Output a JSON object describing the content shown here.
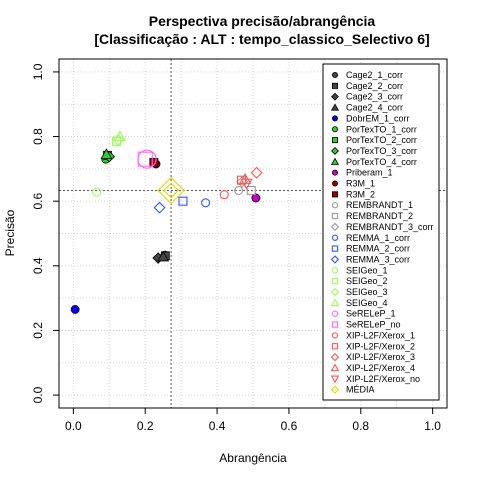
{
  "chart_data": {
    "type": "scatter",
    "title_line1": "Perspectiva precisão/abrangência",
    "title_line2": "[Classificação : ALT : tempo_classico_Selectivo 6]",
    "xlabel": "Abrangência",
    "ylabel": "Precisão",
    "xlim": [
      -0.04,
      1.04
    ],
    "ylim": [
      -0.04,
      1.04
    ],
    "x_ticks": [
      "0.0",
      "0.2",
      "0.4",
      "0.6",
      "0.8",
      "1.0"
    ],
    "y_ticks": [
      "0.0",
      "0.2",
      "0.4",
      "0.6",
      "0.8",
      "1.0"
    ],
    "grid": true,
    "legend_position": "right",
    "reference_lines": {
      "x": 0.272,
      "y": 0.633
    },
    "series": [
      {
        "name": "Cage2_1_corr",
        "color": "#444444",
        "shape": "circle",
        "fill": true,
        "x": 0.255,
        "y": 0.433,
        "size": 4
      },
      {
        "name": "Cage2_2_corr",
        "color": "#444444",
        "shape": "square",
        "fill": true,
        "x": 0.256,
        "y": 0.431,
        "size": 4
      },
      {
        "name": "Cage2_3_corr",
        "color": "#444444",
        "shape": "diamond",
        "fill": true,
        "x": 0.236,
        "y": 0.424,
        "size": 4
      },
      {
        "name": "Cage2_4_corr",
        "color": "#444444",
        "shape": "triangle",
        "fill": true,
        "x": 0.25,
        "y": 0.428,
        "size": 4
      },
      {
        "name": "DobrEM_1_corr",
        "color": "#0000ff",
        "shape": "circle",
        "fill": true,
        "x": 0.005,
        "y": 0.265,
        "size": 4
      },
      {
        "name": "PorTexTO_1_corr",
        "color": "#32cd32",
        "shape": "circle",
        "fill": true,
        "x": 0.09,
        "y": 0.73,
        "size": 4
      },
      {
        "name": "PorTexTO_2_corr",
        "color": "#32cd32",
        "shape": "square",
        "fill": true,
        "x": 0.095,
        "y": 0.742,
        "size": 4
      },
      {
        "name": "PorTexTO_3_corr",
        "color": "#32cd32",
        "shape": "diamond",
        "fill": true,
        "x": 0.1,
        "y": 0.738,
        "size": 4
      },
      {
        "name": "PorTexTO_4_corr",
        "color": "#32cd32",
        "shape": "triangle",
        "fill": true,
        "x": 0.092,
        "y": 0.745,
        "size": 4
      },
      {
        "name": "Priberam_1",
        "color": "#cc00cc",
        "shape": "circle",
        "fill": true,
        "x": 0.508,
        "y": 0.61,
        "size": 4
      },
      {
        "name": "R3M_1",
        "color": "#a00000",
        "shape": "circle",
        "fill": true,
        "x": 0.23,
        "y": 0.715,
        "size": 4
      },
      {
        "name": "R3M_2",
        "color": "#a00000",
        "shape": "square",
        "fill": true,
        "x": 0.224,
        "y": 0.72,
        "size": 4
      },
      {
        "name": "REMBRANDT_1",
        "color": "#999999",
        "shape": "circle",
        "fill": false,
        "x": 0.46,
        "y": 0.633,
        "size": 4
      },
      {
        "name": "REMBRANDT_2",
        "color": "#999999",
        "shape": "square",
        "fill": false,
        "x": 0.495,
        "y": 0.633,
        "size": 4
      },
      {
        "name": "REMBRANDT_3_corr",
        "color": "#999999",
        "shape": "diamond",
        "fill": false,
        "x": 0.47,
        "y": 0.66,
        "size": 4
      },
      {
        "name": "REMMA_1_corr",
        "color": "#3355ff",
        "shape": "circle",
        "fill": false,
        "x": 0.368,
        "y": 0.595,
        "size": 4
      },
      {
        "name": "REMMA_2_corr",
        "color": "#3355ff",
        "shape": "square",
        "fill": false,
        "x": 0.305,
        "y": 0.6,
        "size": 4
      },
      {
        "name": "REMMA_3_corr",
        "color": "#3355ff",
        "shape": "diamond",
        "fill": false,
        "x": 0.24,
        "y": 0.58,
        "size": 4
      },
      {
        "name": "SEIGeo_1",
        "color": "#99ff55",
        "shape": "circle",
        "fill": false,
        "x": 0.065,
        "y": 0.628,
        "size": 4
      },
      {
        "name": "SEIGeo_2",
        "color": "#99ff55",
        "shape": "square",
        "fill": false,
        "x": 0.12,
        "y": 0.785,
        "size": 4
      },
      {
        "name": "SEIGeo_3",
        "color": "#99ff55",
        "shape": "diamond",
        "fill": false,
        "x": 0.125,
        "y": 0.79,
        "size": 4
      },
      {
        "name": "SEIGeo_4",
        "color": "#99ff55",
        "shape": "triangle",
        "fill": false,
        "x": 0.13,
        "y": 0.8,
        "size": 4
      },
      {
        "name": "SeRELeP_1",
        "color": "#ff66ff",
        "shape": "circle",
        "fill": false,
        "x": 0.205,
        "y": 0.73,
        "size": 9
      },
      {
        "name": "SeRELeP_no",
        "color": "#ff66ff",
        "shape": "square",
        "fill": false,
        "x": 0.2,
        "y": 0.73,
        "size": 7
      },
      {
        "name": "XIP-L2F/Xerox_1",
        "color": "#ff5555",
        "shape": "circle",
        "fill": false,
        "x": 0.42,
        "y": 0.62,
        "size": 4
      },
      {
        "name": "XIP-L2F/Xerox_2",
        "color": "#ff5555",
        "shape": "square",
        "fill": false,
        "x": 0.468,
        "y": 0.665,
        "size": 4
      },
      {
        "name": "XIP-L2F/Xerox_3",
        "color": "#ff5555",
        "shape": "diamond",
        "fill": false,
        "x": 0.51,
        "y": 0.688,
        "size": 4
      },
      {
        "name": "XIP-L2F/Xerox_4",
        "color": "#ff5555",
        "shape": "triangle",
        "fill": false,
        "x": 0.478,
        "y": 0.668,
        "size": 4
      },
      {
        "name": "XIP-L2F/Xerox_no",
        "color": "#ff5555",
        "shape": "triangle-down",
        "fill": false,
        "x": 0.482,
        "y": 0.655,
        "size": 4
      },
      {
        "name": "MÉDIA",
        "color": "#ffff00",
        "shape": "diamond",
        "fill": false,
        "x": 0.272,
        "y": 0.633,
        "size": 10
      }
    ]
  }
}
